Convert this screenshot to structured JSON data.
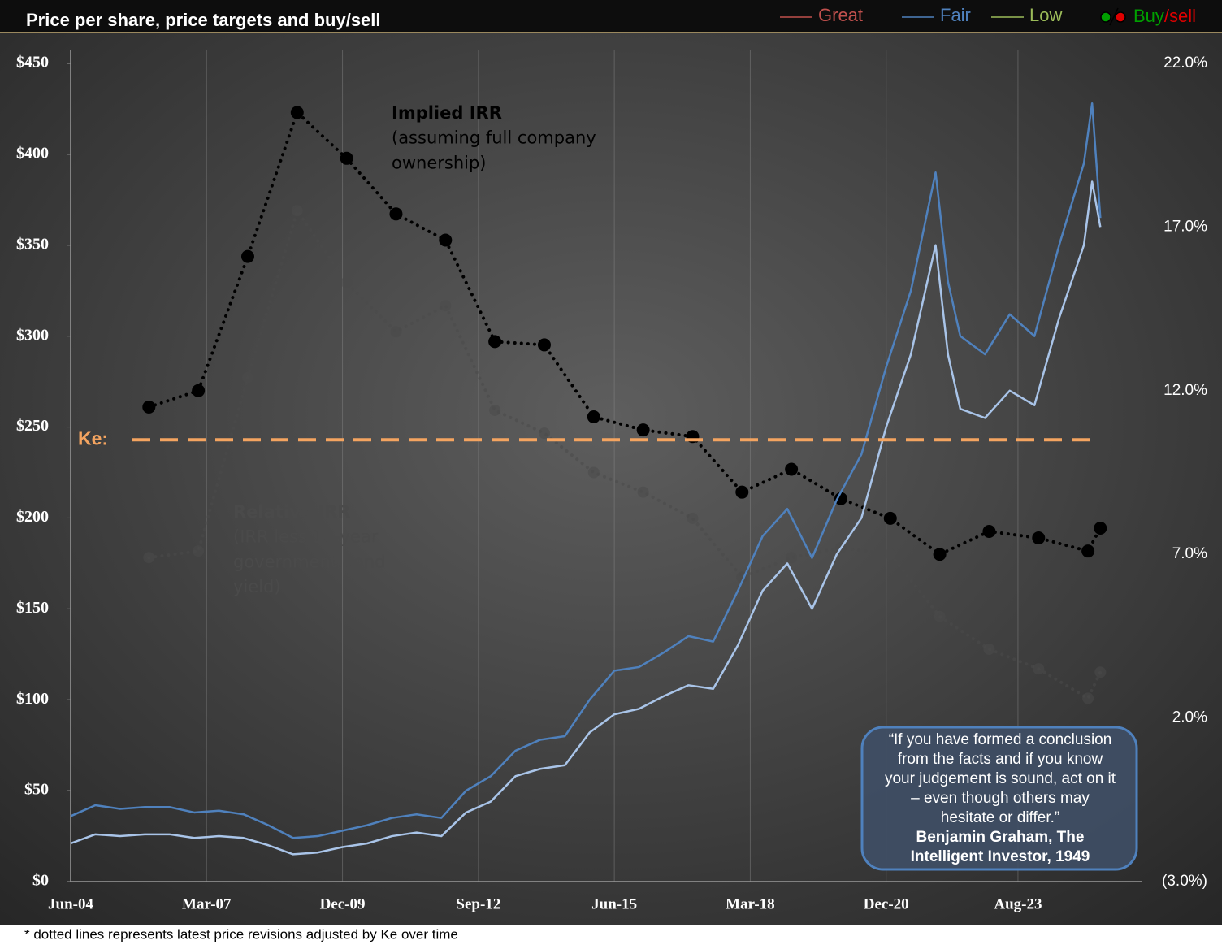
{
  "chart_data": {
    "type": "line",
    "title": "Price per share, price targets and buy/sell",
    "legend": [
      {
        "label": "Great",
        "color": "#c0504d"
      },
      {
        "label": "Fair",
        "color": "#4f81bd"
      },
      {
        "label": "Low",
        "color": "#9bbb59"
      },
      {
        "label_parts": [
          "Buy",
          "/sell"
        ],
        "colors": [
          "#00a000",
          "#e00000"
        ]
      }
    ],
    "xlim": [
      "Jun-04",
      "Feb-26"
    ],
    "xticks": [
      "Jun-04",
      "Mar-07",
      "Dec-09",
      "Sep-12",
      "Jun-15",
      "Mar-18",
      "Dec-20",
      "Aug-23"
    ],
    "ylim": [
      0,
      450
    ],
    "yticks": [
      {
        "value": 0,
        "label": "$0"
      },
      {
        "value": 50,
        "label": "$50"
      },
      {
        "value": 100,
        "label": "$100"
      },
      {
        "value": 150,
        "label": "$150"
      },
      {
        "value": 200,
        "label": "$200"
      },
      {
        "value": 250,
        "label": "$250"
      },
      {
        "value": 300,
        "label": "$300"
      },
      {
        "value": 350,
        "label": "$350"
      },
      {
        "value": 400,
        "label": "$400"
      },
      {
        "value": 450,
        "label": "$450"
      }
    ],
    "y2lim": [
      -3,
      22
    ],
    "y2ticks": [
      {
        "value": -3,
        "label": "(3.0%)"
      },
      {
        "value": 2,
        "label": "2.0%"
      },
      {
        "value": 7,
        "label": "7.0%"
      },
      {
        "value": 12,
        "label": "12.0%"
      },
      {
        "value": 17,
        "label": "17.0%"
      },
      {
        "value": 22,
        "label": "22.0%"
      }
    ],
    "grid": true,
    "price_x": [
      "Jun-04",
      "Dec-04",
      "Jun-05",
      "Dec-05",
      "Jun-06",
      "Dec-06",
      "Jun-07",
      "Dec-07",
      "Jun-08",
      "Dec-08",
      "Jun-09",
      "Dec-09",
      "Jun-10",
      "Dec-10",
      "Jun-11",
      "Dec-11",
      "Jun-12",
      "Dec-12",
      "Jun-13",
      "Dec-13",
      "Jun-14",
      "Dec-14",
      "Jun-15",
      "Dec-15",
      "Jun-16",
      "Dec-16",
      "Jun-17",
      "Dec-17",
      "Jun-18",
      "Dec-18",
      "Jun-19",
      "Dec-19",
      "Jun-20",
      "Dec-20",
      "Jun-21",
      "Dec-21",
      "Mar-22",
      "Jun-22",
      "Dec-22",
      "Jun-23",
      "Dec-23",
      "Jun-24",
      "Dec-24",
      "Feb-25",
      "Apr-25"
    ],
    "series": [
      {
        "color": "#4f81bd",
        "values": [
          36,
          42,
          40,
          41,
          41,
          38,
          39,
          37,
          31,
          24,
          25,
          28,
          31,
          35,
          37,
          35,
          50,
          58,
          72,
          78,
          80,
          100,
          116,
          118,
          126,
          135,
          132,
          160,
          190,
          205,
          178,
          210,
          235,
          283,
          325,
          390,
          330,
          300,
          290,
          312,
          300,
          350,
          395,
          428,
          365
        ]
      },
      {
        "color": "#a9c4e8",
        "values": [
          21,
          26,
          25,
          26,
          26,
          24,
          25,
          24,
          20,
          15,
          16,
          19,
          21,
          25,
          27,
          25,
          38,
          44,
          58,
          62,
          64,
          82,
          92,
          95,
          102,
          108,
          106,
          130,
          160,
          175,
          150,
          180,
          200,
          250,
          290,
          350,
          290,
          260,
          255,
          270,
          262,
          310,
          350,
          385,
          360
        ]
      }
    ],
    "irr_x": [
      "Jan-06",
      "Jan-07",
      "Jan-08",
      "Jan-09",
      "Jan-10",
      "Jan-11",
      "Jan-12",
      "Jan-13",
      "Jan-14",
      "Jan-15",
      "Jan-16",
      "Jan-17",
      "Jan-18",
      "Jan-19",
      "Jan-20",
      "Jan-21",
      "Jan-22",
      "Jan-23",
      "Jan-24",
      "Jan-25",
      "Apr-25"
    ],
    "irr_series": [
      {
        "color": "#000000",
        "axis": "y2",
        "values": [
          11.5,
          12.0,
          16.1,
          20.5,
          19.1,
          17.4,
          16.6,
          13.5,
          13.4,
          11.2,
          10.8,
          10.6,
          8.9,
          9.6,
          8.7,
          8.1,
          7.0,
          7.7,
          7.5,
          7.1,
          7.8
        ]
      },
      {
        "color": "#4a4a4a",
        "axis": "y2",
        "values": [
          6.9,
          7.1,
          12.4,
          17.5,
          15.3,
          13.8,
          14.6,
          11.4,
          10.7,
          9.5,
          8.9,
          8.1,
          6.3,
          6.9,
          7.2,
          7.0,
          5.1,
          4.1,
          3.5,
          2.6,
          3.4
        ]
      }
    ],
    "ke": {
      "label": "Ke:",
      "value": 10.5,
      "axis": "y2",
      "color": "#f4a460"
    },
    "annotations": [
      {
        "lines": [
          "Implied IRR",
          "(assuming full company",
          "ownership)"
        ]
      },
      {
        "lines": [
          "Relative IRR",
          "(IRR less 10-year",
          "government bond",
          "yield)"
        ]
      }
    ],
    "quote": [
      "“If you have formed a conclusion",
      "from the facts and if you know",
      "your judgement is sound, act on it",
      "– even though others may",
      "hesitate or differ.”",
      "Benjamin Graham, The",
      "Intelligent Investor, 1949"
    ],
    "footnote": "* dotted lines represents latest price revisions adjusted by Ke over time"
  }
}
